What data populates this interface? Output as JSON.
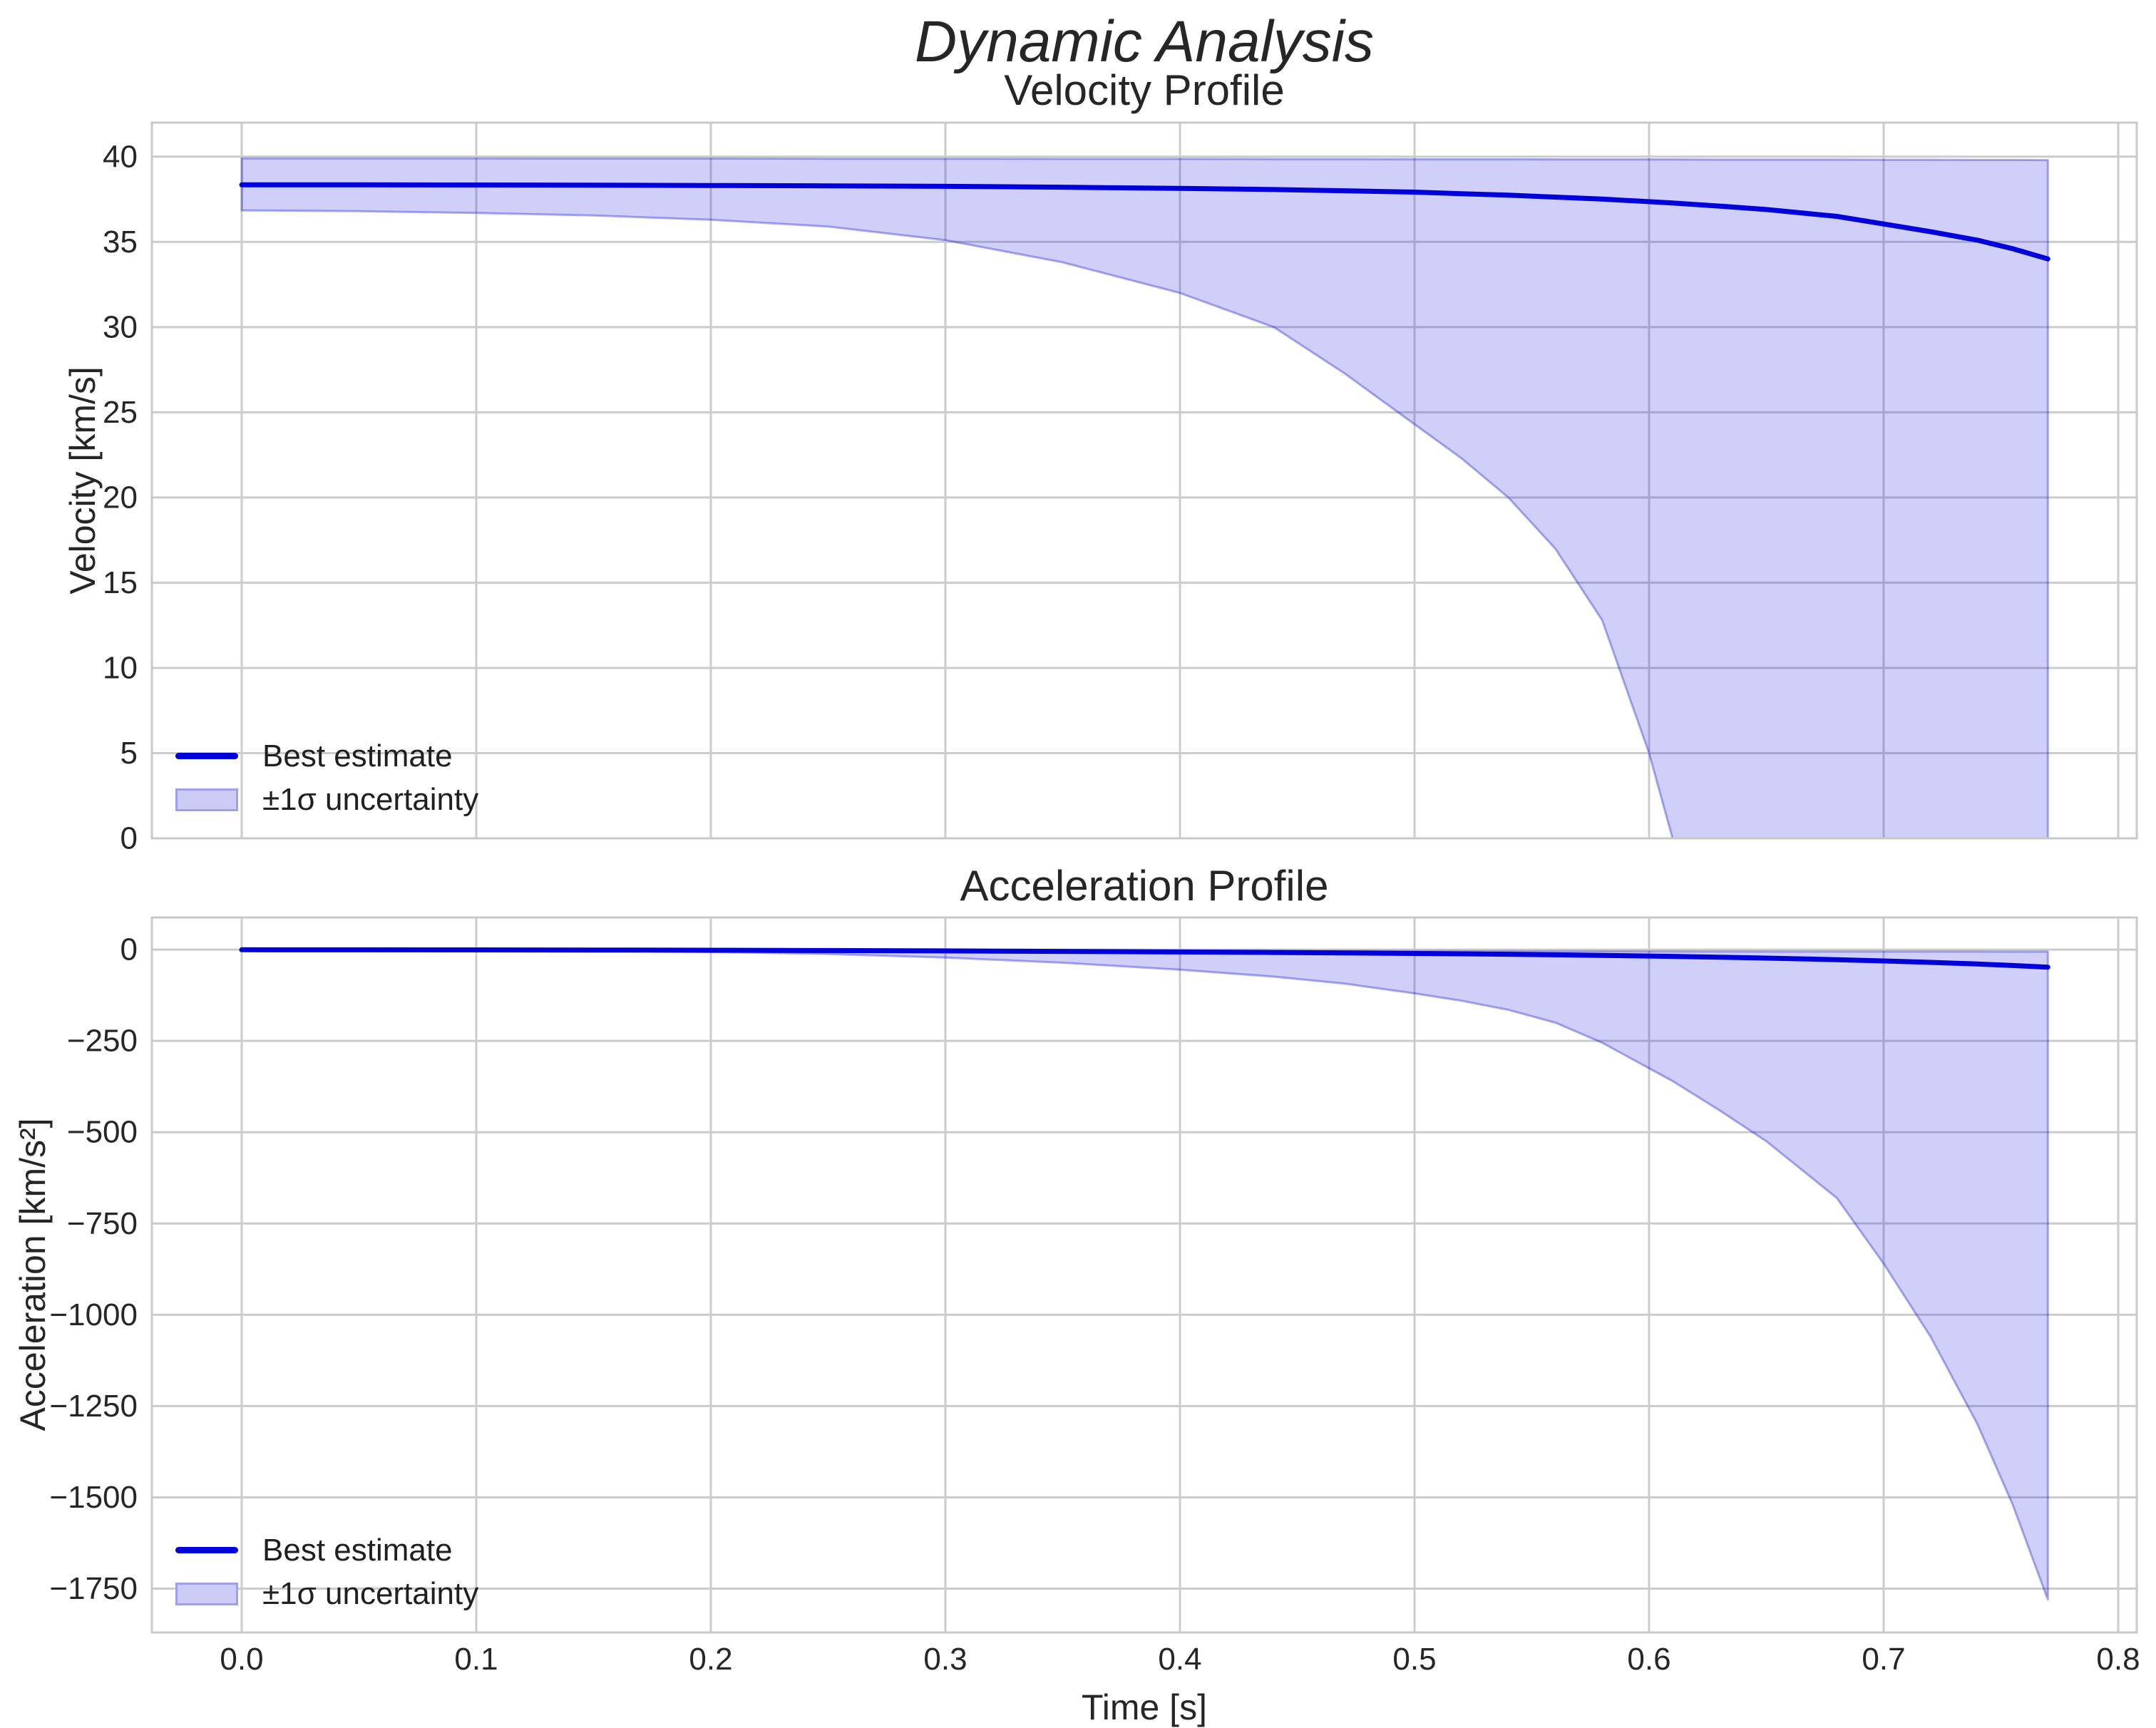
{
  "figure": {
    "title": "Dynamic Analysis",
    "background": "#ffffff"
  },
  "colors": {
    "line": "#0000dd",
    "band_fill": "#ccccf7",
    "band_edge": "#9f9fee",
    "grid": "#cccccc",
    "spine": "#c9c9c9",
    "text": "#262626",
    "background": "#ffffff"
  },
  "chart_data": [
    {
      "id": "velocity-profile",
      "type": "line",
      "title": "Velocity Profile",
      "ylabel": "Velocity [km/s]",
      "xlim": [
        -0.0383,
        0.8079
      ],
      "ylim": [
        0,
        42
      ],
      "grid": true,
      "legend": {
        "location": "lower left",
        "entries": [
          {
            "type": "line",
            "label": "Best estimate"
          },
          {
            "type": "patch",
            "label": "±1σ uncertainty"
          }
        ]
      },
      "x_ticks": {
        "values": [
          0.0,
          0.1,
          0.2,
          0.3,
          0.4,
          0.5,
          0.6,
          0.7,
          0.8
        ],
        "labels": [
          "0.0",
          "0.1",
          "0.2",
          "0.3",
          "0.4",
          "0.5",
          "0.6",
          "0.7",
          "0.8"
        ],
        "show_labels": false
      },
      "y_ticks": {
        "values": [
          0,
          5,
          10,
          15,
          20,
          25,
          30,
          35,
          40
        ],
        "labels": [
          "0",
          "5",
          "10",
          "15",
          "20",
          "25",
          "30",
          "35",
          "40"
        ]
      },
      "x": [
        0,
        0.05,
        0.1,
        0.15,
        0.2,
        0.25,
        0.3,
        0.35,
        0.4,
        0.44,
        0.47,
        0.5,
        0.52,
        0.54,
        0.56,
        0.58,
        0.6,
        0.61,
        0.63,
        0.65,
        0.68,
        0.7,
        0.72,
        0.74,
        0.755,
        0.77
      ],
      "series": [
        {
          "name": "Best estimate",
          "role": "best",
          "values": [
            38.35,
            38.35,
            38.34,
            38.33,
            38.31,
            38.29,
            38.26,
            38.21,
            38.14,
            38.07,
            38.0,
            37.92,
            37.83,
            37.74,
            37.63,
            37.51,
            37.36,
            37.28,
            37.1,
            36.9,
            36.5,
            36.05,
            35.6,
            35.1,
            34.6,
            34.0
          ]
        },
        {
          "name": "+1σ bound",
          "role": "upper",
          "values": [
            39.9,
            39.9,
            39.9,
            39.89,
            39.89,
            39.88,
            39.88,
            39.87,
            39.87,
            39.86,
            39.86,
            39.85,
            39.85,
            39.85,
            39.84,
            39.84,
            39.84,
            39.84,
            39.83,
            39.83,
            39.83,
            39.82,
            39.82,
            39.81,
            39.81,
            39.8
          ]
        },
        {
          "name": "−1σ bound",
          "role": "lower",
          "values": [
            36.85,
            36.8,
            36.7,
            36.55,
            36.3,
            35.9,
            35.1,
            33.8,
            32.0,
            30.0,
            27.3,
            24.3,
            22.3,
            20.0,
            17.0,
            12.8,
            5.0,
            0,
            0,
            0,
            0,
            0,
            0,
            0,
            0,
            0
          ]
        }
      ]
    },
    {
      "id": "acceleration-profile",
      "type": "line",
      "title": "Acceleration Profile",
      "ylabel": "Acceleration [km/s²]",
      "xlabel": "Time [s]",
      "xlim": [
        -0.0383,
        0.8079
      ],
      "ylim": [
        -1870,
        88
      ],
      "grid": true,
      "legend": {
        "location": "lower left",
        "entries": [
          {
            "type": "line",
            "label": "Best estimate"
          },
          {
            "type": "patch",
            "label": "±1σ uncertainty"
          }
        ]
      },
      "x_ticks": {
        "values": [
          0.0,
          0.1,
          0.2,
          0.3,
          0.4,
          0.5,
          0.6,
          0.7,
          0.8
        ],
        "labels": [
          "0.0",
          "0.1",
          "0.2",
          "0.3",
          "0.4",
          "0.5",
          "0.6",
          "0.7",
          "0.8"
        ],
        "show_labels": true
      },
      "y_ticks": {
        "values": [
          0,
          -250,
          -500,
          -750,
          -1000,
          -1250,
          -1500,
          -1750
        ],
        "labels": [
          "0",
          "−250",
          "−500",
          "−750",
          "−1000",
          "−1250",
          "−1500",
          "−1750"
        ]
      },
      "x": [
        0,
        0.05,
        0.1,
        0.15,
        0.2,
        0.25,
        0.3,
        0.35,
        0.4,
        0.44,
        0.47,
        0.5,
        0.52,
        0.54,
        0.56,
        0.58,
        0.6,
        0.61,
        0.63,
        0.65,
        0.68,
        0.7,
        0.72,
        0.74,
        0.755,
        0.77
      ],
      "series": [
        {
          "name": "Best estimate",
          "role": "best",
          "values": [
            -0.5,
            -0.6,
            -0.8,
            -1.2,
            -1.8,
            -2.6,
            -3.6,
            -4.9,
            -6.4,
            -7.8,
            -9.0,
            -10.5,
            -11.6,
            -12.8,
            -14.2,
            -15.8,
            -17.6,
            -18.6,
            -20.8,
            -23.3,
            -27.6,
            -31.0,
            -35.0,
            -39.5,
            -43.5,
            -48.0
          ]
        },
        {
          "name": "+1σ bound",
          "role": "upper",
          "values": [
            -0.3,
            -0.4,
            -0.5,
            -0.7,
            -1.0,
            -1.4,
            -1.9,
            -2.4,
            -3.0,
            -3.4,
            -3.7,
            -4.0,
            -4.2,
            -4.4,
            -4.6,
            -4.8,
            -5.0,
            -5.0,
            -5.1,
            -5.2,
            -5.3,
            -5.3,
            -5.4,
            -5.4,
            -5.5,
            -5.5
          ]
        },
        {
          "name": "−1σ bound",
          "role": "lower",
          "values": [
            -1.0,
            -1.4,
            -2.0,
            -3.5,
            -6.5,
            -12,
            -22,
            -36,
            -55,
            -74,
            -93,
            -120,
            -140,
            -165,
            -200,
            -255,
            -325,
            -360,
            -440,
            -525,
            -680,
            -860,
            -1060,
            -1300,
            -1520,
            -1780
          ]
        }
      ]
    }
  ]
}
